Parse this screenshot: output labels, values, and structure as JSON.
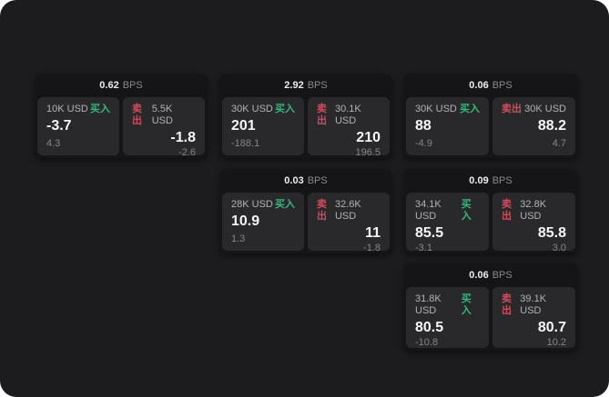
{
  "labels": {
    "bps": "BPS",
    "buy": "买入",
    "sell": "卖出"
  },
  "colors": {
    "window_bg": "#1c1c1e",
    "card_bg": "#151517",
    "panel_bg": "#29292b",
    "buy_green": "#35b87b",
    "sell_red": "#d04c5d"
  },
  "cards": [
    {
      "bps": "0.62",
      "buy_amount": "10K USD",
      "buy_price": "-3.7",
      "buy_delta": "4.3",
      "sell_amount": "5.5K USD",
      "sell_price": "-1.8",
      "sell_delta": "-2.6"
    },
    {
      "bps": "2.92",
      "buy_amount": "30K USD",
      "buy_price": "201",
      "buy_delta": "-188.1",
      "sell_amount": "30.1K USD",
      "sell_price": "210",
      "sell_delta": "196.5"
    },
    {
      "bps": "0.06",
      "buy_amount": "30K USD",
      "buy_price": "88",
      "buy_delta": "-4.9",
      "sell_amount": "30K USD",
      "sell_price": "88.2",
      "sell_delta": "4.7"
    },
    {
      "bps": "0.03",
      "buy_amount": "28K USD",
      "buy_price": "10.9",
      "buy_delta": "1.3",
      "sell_amount": "32.6K USD",
      "sell_price": "11",
      "sell_delta": "-1.8"
    },
    {
      "bps": "0.09",
      "buy_amount": "34.1K USD",
      "buy_price": "85.5",
      "buy_delta": "-3.1",
      "sell_amount": "32.8K USD",
      "sell_price": "85.8",
      "sell_delta": "3.0"
    },
    {
      "bps": "0.06",
      "buy_amount": "31.8K USD",
      "buy_price": "80.5",
      "buy_delta": "-10.8",
      "sell_amount": "39.1K USD",
      "sell_price": "80.7",
      "sell_delta": "10.2"
    }
  ]
}
